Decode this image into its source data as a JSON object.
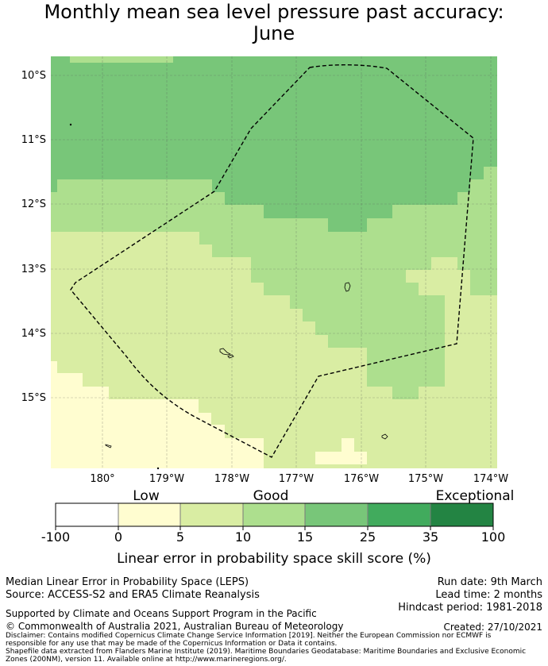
{
  "title": {
    "line1": "Monthly mean sea level pressure past accuracy:",
    "line2": "June"
  },
  "map": {
    "lon_labels": [
      "180°",
      "179°W",
      "178°W",
      "177°W",
      "176°W",
      "175°W",
      "174°W"
    ],
    "lat_labels": [
      "10°S",
      "11°S",
      "12°S",
      "13°S",
      "14°S",
      "15°S"
    ],
    "colors": {
      "c1": "#fffdd0",
      "c2": "#d9eda3",
      "c3": "#addf8e",
      "c4": "#78c679",
      "c5": "#41ab5d",
      "c6": "#238443"
    }
  },
  "colorbar": {
    "categories": [
      "Low",
      "Good",
      "Exceptional"
    ],
    "ticks": [
      "-100",
      "0",
      "5",
      "10",
      "15",
      "25",
      "35",
      "100"
    ],
    "colors": [
      "#ffffff",
      "#fffdd0",
      "#d9eda3",
      "#addf8e",
      "#78c679",
      "#41ab5d",
      "#238443"
    ],
    "title": "Linear error in probability space skill score (%)"
  },
  "info": {
    "method": "Median Linear Error in Probability Space (LEPS)",
    "source": "Source: ACCESS-S2 and ERA5 Climate Reanalysis",
    "run_date": "Run date: 9th March",
    "lead_time": "Lead time: 2 months",
    "hindcast": "Hindcast period: 1981-2018",
    "support": "Supported by Climate and Oceans Support Program in the Pacific",
    "copyright": "© Commonwealth of Australia 2021, Australian Bureau of Meteorology",
    "created": "Created: 27/10/2021",
    "disclaimer1": "Disclaimer: Contains modified Copernicus Climate Change Service Information [2019]. Neither the European Commission nor ECMWF is responsible for any use that may be made of the Copernicus Information or Data it contains.",
    "disclaimer2": "Shapefile data extracted from Flanders Marine Institute (2019). Maritime Boundaries Geodatabase: Maritime Boundaries and Exclusive Economic Zones (200NM), version 11. Available online at http://www.marineregions.org/."
  }
}
